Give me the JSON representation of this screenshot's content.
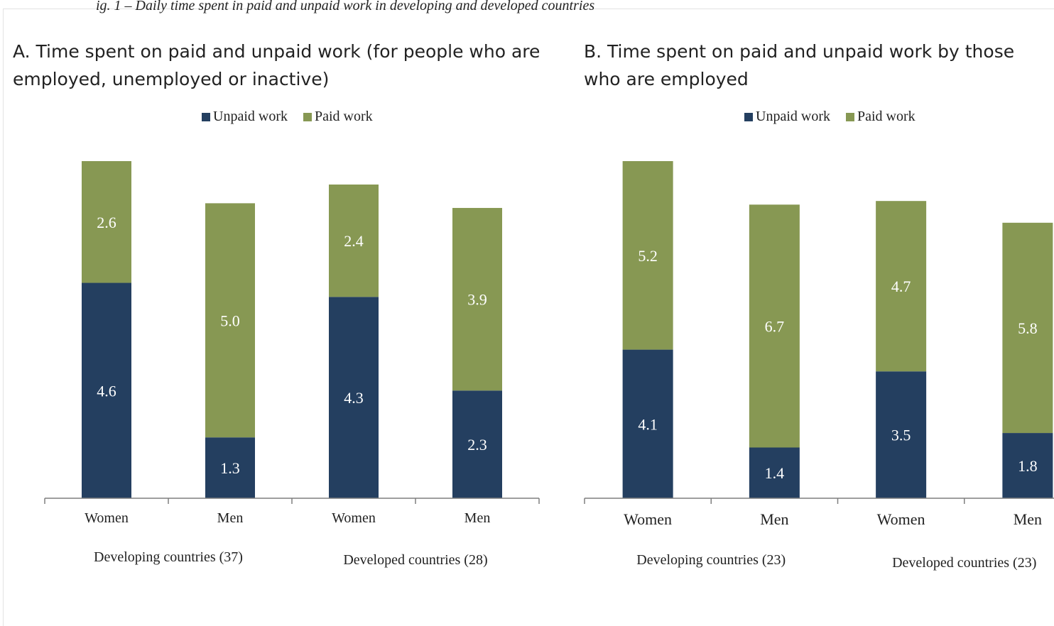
{
  "figure": {
    "caption": "ig. 1 – Daily time spent in paid and unpaid work in developing and developed countries"
  },
  "colors": {
    "unpaid": "#243f60",
    "paid": "#879853",
    "axis": "#7f7f7f",
    "label_on_bar": "#ffffff",
    "text": "#222222"
  },
  "chart_data": [
    {
      "type": "bar",
      "stacked": true,
      "title": "A. Time spent on paid and unpaid work (for people who are employed, unemployed or inactive)",
      "legend": [
        "Unpaid work",
        "Paid work"
      ],
      "legend_position": "top-center",
      "categories": [
        "Women",
        "Men",
        "Women",
        "Men"
      ],
      "groups": [
        {
          "label": "Developing countries (37)",
          "categories": [
            0,
            1
          ]
        },
        {
          "label": "Developed countries (28)",
          "categories": [
            2,
            3
          ]
        }
      ],
      "series": [
        {
          "name": "Unpaid work",
          "values": [
            4.6,
            1.3,
            4.3,
            2.3
          ]
        },
        {
          "name": "Paid work",
          "values": [
            2.6,
            5.0,
            2.4,
            3.9
          ]
        }
      ],
      "ylim": [
        0,
        7.2
      ],
      "grid": false
    },
    {
      "type": "bar",
      "stacked": true,
      "title": "B. Time spent on paid and unpaid work by those who are employed",
      "legend": [
        "Unpaid work",
        "Paid work"
      ],
      "legend_position": "top-center",
      "categories": [
        "Women",
        "Men",
        "Women",
        "Men"
      ],
      "groups": [
        {
          "label": "Developing countries (23)",
          "categories": [
            0,
            1
          ]
        },
        {
          "label": "Developed countries (23)",
          "categories": [
            2,
            3
          ]
        }
      ],
      "series": [
        {
          "name": "Unpaid work",
          "values": [
            4.1,
            1.4,
            3.5,
            1.8
          ]
        },
        {
          "name": "Paid work",
          "values": [
            5.2,
            6.7,
            4.7,
            5.8
          ]
        }
      ],
      "ylim": [
        0,
        9.3
      ],
      "grid": false
    }
  ]
}
